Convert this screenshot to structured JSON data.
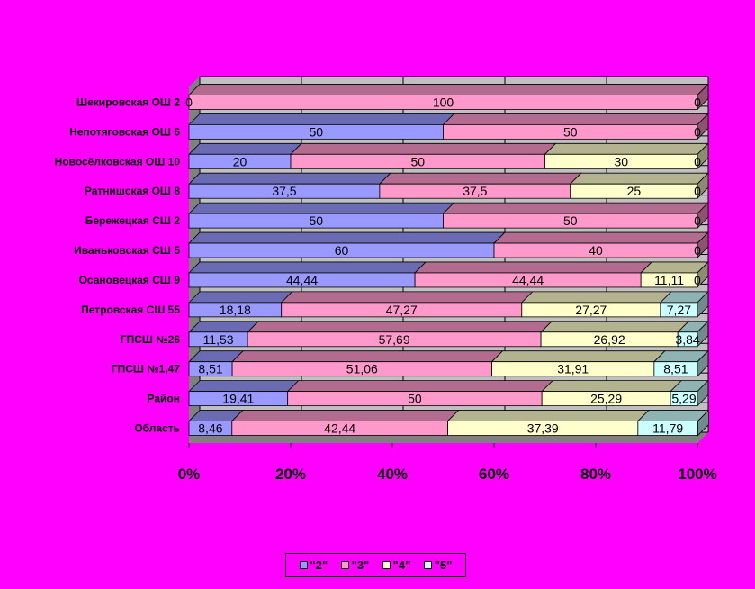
{
  "chart_data": {
    "type": "bar",
    "orientation": "horizontal",
    "stacked": "percent",
    "three_d": true,
    "categories": [
      "Шекировская ОШ 2",
      "Непотяговская ОШ 6",
      "Новосёлковская ОШ 10",
      "Ратнишская ОШ 8",
      "Бережецкая СШ 2",
      "Иваньковская СШ 5",
      "Осановецкая СШ 9",
      "Петровская СШ 55",
      "ГПСШ №26",
      "ГПСШ №1,47",
      "Район",
      "Область"
    ],
    "series": [
      {
        "name": "\"2\"",
        "color": "#9999ff",
        "values": [
          0,
          50,
          20,
          37.5,
          50,
          60,
          44.44,
          18.18,
          11.53,
          8.51,
          19.41,
          8.46
        ],
        "labels": [
          "0",
          "50",
          "20",
          "37,5",
          "50",
          "60",
          "44,44",
          "18,18",
          "11,53",
          "8,51",
          "19,41",
          "8,46"
        ]
      },
      {
        "name": "\"3\"",
        "color": "#ff99cc",
        "values": [
          100,
          50,
          50,
          37.5,
          50,
          40,
          44.44,
          47.27,
          57.69,
          51.06,
          50,
          42.44
        ],
        "labels": [
          "100",
          "50",
          "50",
          "37,5",
          "50",
          "40",
          "44,44",
          "47,27",
          "57,69",
          "51,06",
          "50",
          "42,44"
        ]
      },
      {
        "name": "\"4\"",
        "color": "#ffffcc",
        "values": [
          0,
          0,
          30,
          25,
          0,
          0,
          11.11,
          27.27,
          26.92,
          31.91,
          25.29,
          37.39
        ],
        "labels": [
          "",
          "",
          "30",
          "25",
          "",
          "",
          "11,11",
          "27,27",
          "26,92",
          "31,91",
          "25,29",
          "37,39"
        ]
      },
      {
        "name": "\"5\"",
        "color": "#ccffff",
        "values": [
          0,
          0,
          0,
          0,
          0,
          0,
          0,
          7.27,
          3.84,
          8.51,
          5.29,
          11.79
        ],
        "labels": [
          "0",
          "0",
          "0",
          "0",
          "0",
          "0",
          "0",
          "7,27",
          "3,84",
          "8,51",
          "5,29",
          "11,79"
        ]
      }
    ],
    "x_ticks": [
      "0%",
      "20%",
      "40%",
      "60%",
      "80%",
      "100%"
    ],
    "xlim": [
      0,
      100
    ],
    "grid": true,
    "legend_position": "bottom",
    "wall_color": "#c0c0c0",
    "background_color": "#ff00ff"
  }
}
